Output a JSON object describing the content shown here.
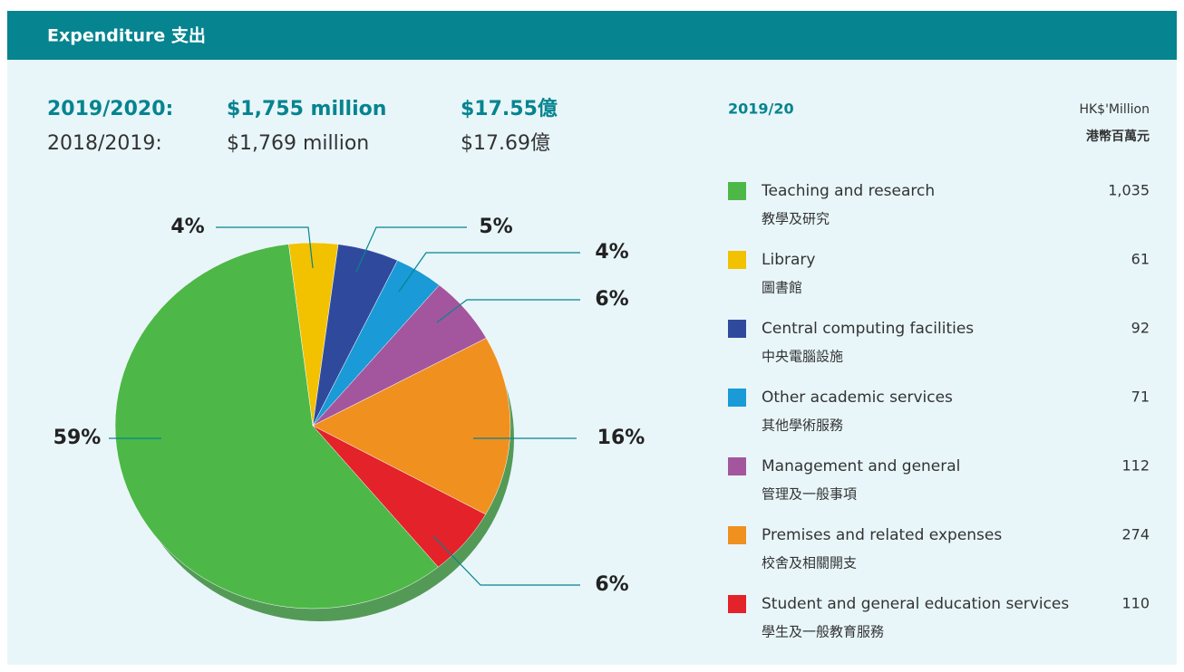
{
  "chart_data": {
    "type": "pie",
    "title": "Expenditure 支出",
    "summary": [
      [
        "2019/2020:",
        "$1,755 million",
        "$17.55億"
      ],
      [
        "2018/2019:",
        "$1,769 million",
        "$17.69億"
      ]
    ],
    "legend_year": "2019/20",
    "legend_unit": "HK$'Million",
    "legend_unit_zh": "港幣百萬元",
    "categories": [
      "Teaching and research",
      "Library",
      "Central computing facilities",
      "Other academic services",
      "Management and general",
      "Premises and related expenses",
      "Student and general education services"
    ],
    "categories_zh": [
      "教學及研究",
      "圖書館",
      "中央電腦設施",
      "其他學術服務",
      "管理及一般事項",
      "校舍及相關開支",
      "學生及一般教育服務"
    ],
    "amounts": [
      "1,035",
      "61",
      "92",
      "71",
      "112",
      "274",
      "110"
    ],
    "values": [
      59,
      4,
      5,
      4,
      6,
      16,
      6
    ],
    "value_labels": [
      "59%",
      "4%",
      "5%",
      "4%",
      "6%",
      "16%",
      "6%"
    ],
    "colors": [
      "#4db848",
      "#f2c100",
      "#2f4a9d",
      "#1a9ad6",
      "#a3569e",
      "#f0901f",
      "#e3222a"
    ]
  }
}
